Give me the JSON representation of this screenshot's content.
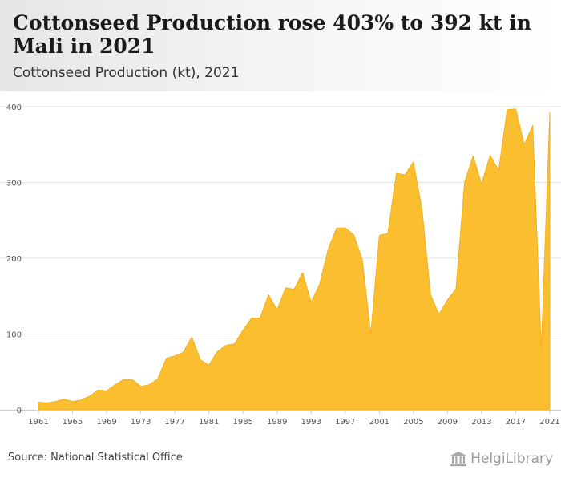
{
  "header": {
    "title": "Cottonseed Production rose 403% to 392 kt in Mali in 2021",
    "subtitle": "Cottonseed Production (kt), 2021"
  },
  "footer": {
    "source": "Source: National Statistical Office",
    "brand": "HelgiLibrary"
  },
  "colors": {
    "area_fill": "#FBBE2E",
    "area_stroke": "#F2B01E",
    "grid": "#e2e2e2",
    "axis": "#cccccc"
  },
  "chart_data": {
    "type": "area",
    "title": "Cottonseed Production rose 403% to 392 kt in Mali in 2021",
    "subtitle": "Cottonseed Production (kt), 2021",
    "xlabel": "",
    "ylabel": "",
    "xlim": [
      1961,
      2021
    ],
    "ylim": [
      0,
      400
    ],
    "yticks": [
      0,
      100,
      200,
      300,
      400
    ],
    "xticks": [
      1961,
      1965,
      1969,
      1973,
      1977,
      1981,
      1985,
      1989,
      1993,
      1997,
      2001,
      2005,
      2009,
      2013,
      2017,
      2021
    ],
    "grid": true,
    "legend": "none",
    "series": [
      {
        "x": [
          1961,
          1962,
          1963,
          1964,
          1965,
          1966,
          1967,
          1968,
          1969,
          1970,
          1971,
          1972,
          1973,
          1974,
          1975,
          1976,
          1977,
          1978,
          1979,
          1980,
          1981,
          1982,
          1983,
          1984,
          1985,
          1986,
          1987,
          1988,
          1989,
          1990,
          1991,
          1992,
          1993,
          1994,
          1995,
          1996,
          1997,
          1998,
          1999,
          2000,
          2001,
          2002,
          2003,
          2004,
          2005,
          2006,
          2007,
          2008,
          2009,
          2010,
          2011,
          2012,
          2013,
          2014,
          2015,
          2016,
          2017,
          2018,
          2019,
          2020,
          2021
        ],
        "values": [
          10,
          9,
          11,
          14,
          11,
          13,
          18,
          26,
          25,
          33,
          40,
          40,
          31,
          33,
          41,
          68,
          71,
          76,
          96,
          66,
          59,
          77,
          85,
          87,
          105,
          121,
          121,
          152,
          132,
          161,
          159,
          181,
          142,
          166,
          212,
          240,
          240,
          231,
          198,
          100,
          230,
          233,
          312,
          310,
          327,
          265,
          152,
          126,
          145,
          160,
          300,
          335,
          298,
          336,
          316,
          396,
          397,
          350,
          375,
          78,
          392
        ]
      }
    ]
  }
}
